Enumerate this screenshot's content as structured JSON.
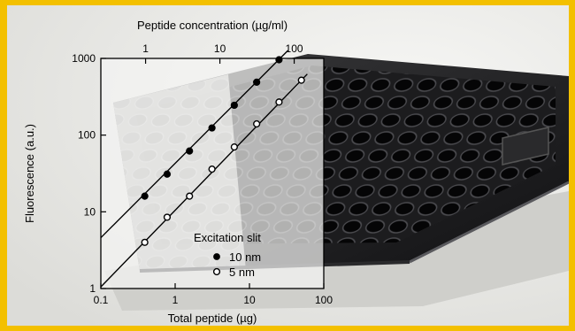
{
  "chart_data": {
    "type": "scatter",
    "title": "",
    "xlabel": "Total peptide (µg)",
    "ylabel": "Fluorescence (a.u.)",
    "x2label": "Peptide concentration (µg/ml)",
    "xscale": "log",
    "yscale": "log",
    "x2scale": "log",
    "xlim": [
      0.1,
      100
    ],
    "ylim": [
      1,
      1000
    ],
    "x_ticks": [
      "0.1",
      "1",
      "10",
      "100"
    ],
    "y_ticks": [
      "1",
      "10",
      "100",
      "1000"
    ],
    "x2_ticks": [
      "1",
      "10",
      "100"
    ],
    "x2_tick_positions_total_peptide": [
      0.4,
      4,
      40
    ],
    "legend_title": "Excitation slit",
    "legend_position": "bottom-right",
    "series": [
      {
        "name": "10 nm",
        "marker": "filled-circle",
        "x": [
          0.39,
          0.78,
          1.56,
          3.13,
          6.25,
          12.5,
          25
        ],
        "y": [
          16,
          31,
          62,
          124,
          245,
          490,
          960
        ],
        "fit": {
          "x": [
            0.1,
            33
          ],
          "y": [
            4.6,
            1270
          ]
        }
      },
      {
        "name": "5 nm",
        "marker": "open-circle",
        "x": [
          0.39,
          0.78,
          1.56,
          3.13,
          6.25,
          12.5,
          25,
          50
        ],
        "y": [
          4,
          8.5,
          16,
          36,
          70,
          140,
          270,
          520
        ],
        "fit": {
          "x": [
            0.1,
            60
          ],
          "y": [
            1.05,
            625
          ]
        }
      }
    ]
  }
}
